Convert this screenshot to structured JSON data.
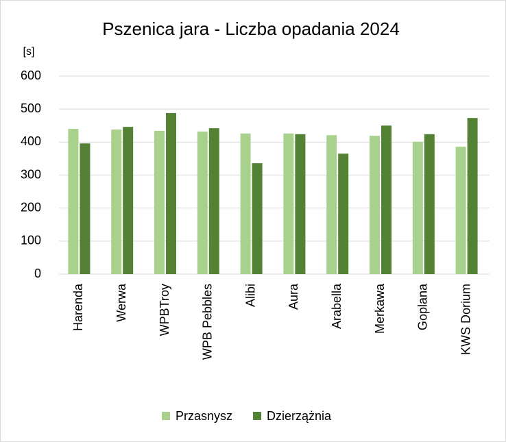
{
  "chart_data": {
    "type": "bar",
    "title": "Pszenica jara - Liczba opadania 2024",
    "y_label": "[s]",
    "categories": [
      "Harenda",
      "Werwa",
      "WPBTroy",
      "WPB Pebbles",
      "Alibi",
      "Aura",
      "Arabella",
      "Merkawa",
      "Goplana",
      "KWS Dorium"
    ],
    "series": [
      {
        "name": "Przasnysz",
        "color": "#a9d18e",
        "values": [
          440,
          438,
          434,
          432,
          426,
          426,
          421,
          419,
          401,
          386
        ]
      },
      {
        "name": "Dzierzążnia",
        "color": "#548235",
        "values": [
          396,
          446,
          488,
          442,
          336,
          424,
          365,
          450,
          424,
          473
        ]
      }
    ],
    "ylim": [
      0,
      600
    ],
    "yticks": [
      0,
      100,
      200,
      300,
      400,
      500,
      600
    ],
    "grid": true,
    "legend": "bottom"
  }
}
